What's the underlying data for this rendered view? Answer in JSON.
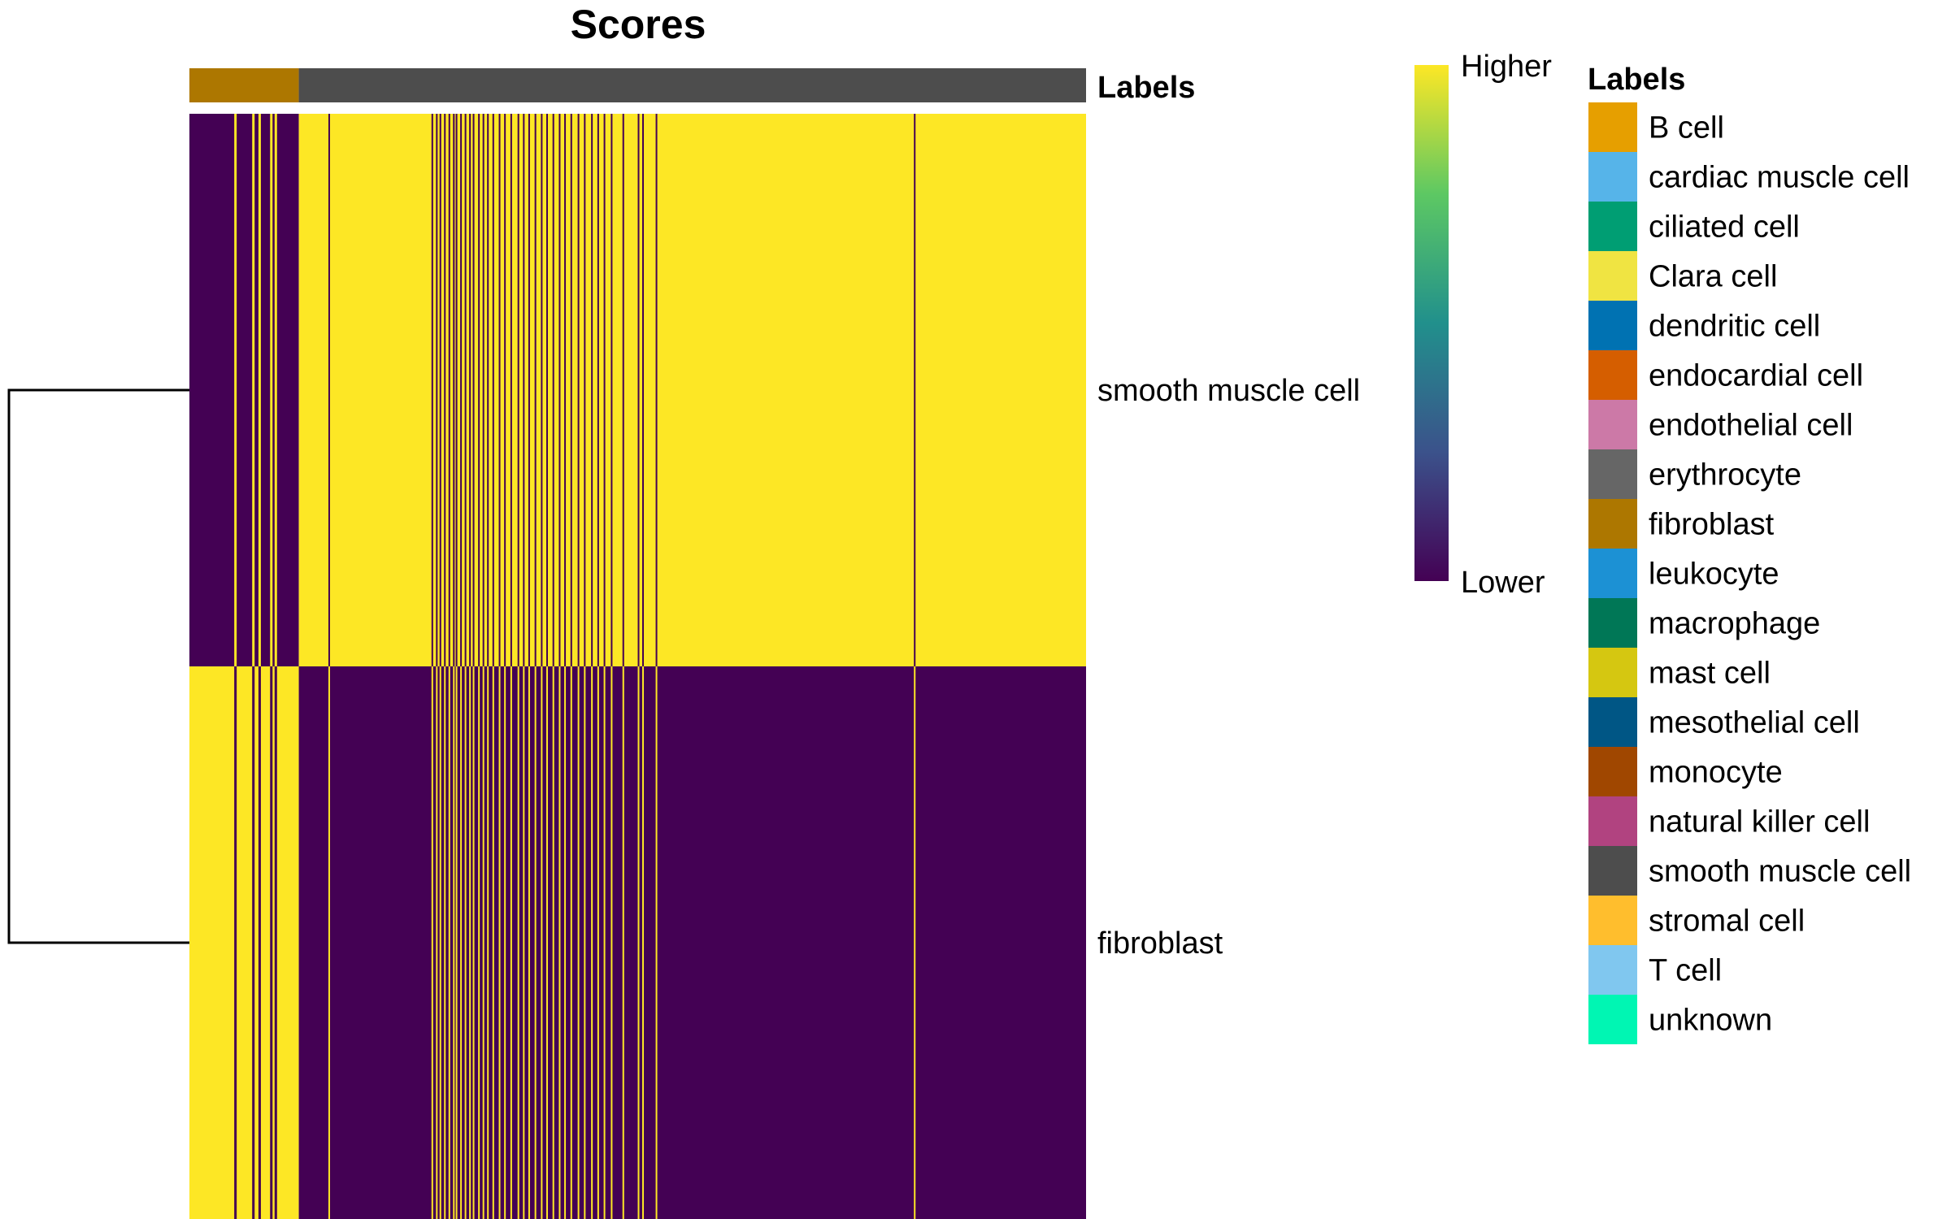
{
  "chart_data": {
    "type": "heatmap",
    "title": "Scores",
    "annotation_bar": {
      "label": "Labels",
      "segments": [
        {
          "label": "fibroblast",
          "fraction": 0.122
        },
        {
          "label": "smooth muscle cell",
          "fraction": 0.878
        }
      ]
    },
    "rows": [
      "smooth muscle cell",
      "fibroblast"
    ],
    "dendrogram": "rows",
    "color_scale": {
      "high_label": "Higher",
      "low_label": "Lower",
      "colors": [
        "#440154",
        "#3B528B",
        "#21908C",
        "#5DC863",
        "#FDE725"
      ]
    },
    "column_pattern": {
      "fibroblast_group": {
        "fraction": 0.122,
        "smooth_muscle_dominant": [
          0.05,
          0.07,
          0.077,
          0.09,
          0.095
        ]
      },
      "smooth_muscle_group": {
        "fibroblast_dominant": [
          0.155,
          0.27,
          0.275,
          0.279,
          0.284,
          0.289,
          0.294,
          0.297,
          0.302,
          0.307,
          0.312,
          0.316,
          0.322,
          0.327,
          0.332,
          0.338,
          0.345,
          0.351,
          0.358,
          0.366,
          0.372,
          0.378,
          0.385,
          0.392,
          0.398,
          0.405,
          0.412,
          0.418,
          0.425,
          0.433,
          0.44,
          0.448,
          0.455,
          0.462,
          0.47,
          0.483,
          0.5,
          0.505,
          0.52,
          0.808
        ]
      }
    },
    "legend": {
      "title": "Labels",
      "items": [
        {
          "label": "B cell",
          "color": "#E69F00"
        },
        {
          "label": "cardiac muscle cell",
          "color": "#56B4E9"
        },
        {
          "label": "ciliated cell",
          "color": "#009E73"
        },
        {
          "label": "Clara cell",
          "color": "#F0E442"
        },
        {
          "label": "dendritic cell",
          "color": "#0072B2"
        },
        {
          "label": "endocardial cell",
          "color": "#D55E00"
        },
        {
          "label": "endothelial cell",
          "color": "#CC79A7"
        },
        {
          "label": "erythrocyte",
          "color": "#666666"
        },
        {
          "label": "fibroblast",
          "color": "#AD7700"
        },
        {
          "label": "leukocyte",
          "color": "#1C91D4"
        },
        {
          "label": "macrophage",
          "color": "#007756"
        },
        {
          "label": "mast cell",
          "color": "#D5C711"
        },
        {
          "label": "mesothelial cell",
          "color": "#005685"
        },
        {
          "label": "monocyte",
          "color": "#A04700"
        },
        {
          "label": "natural killer cell",
          "color": "#B14380"
        },
        {
          "label": "smooth muscle cell",
          "color": "#4D4D4D"
        },
        {
          "label": "stromal cell",
          "color": "#FFBE2D"
        },
        {
          "label": "T cell",
          "color": "#80C7EF"
        },
        {
          "label": "unknown",
          "color": "#00F6B3"
        }
      ]
    }
  }
}
